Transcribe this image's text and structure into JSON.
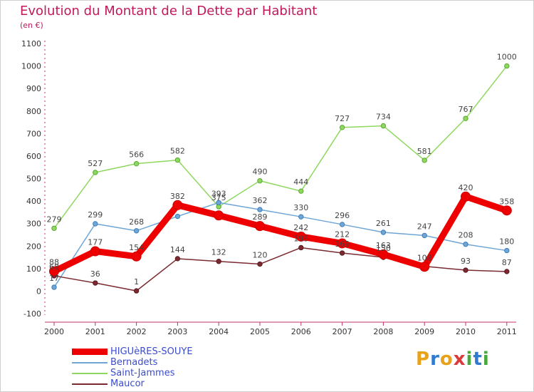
{
  "title": "Evolution du Montant de la Dette par Habitant",
  "unit": "(en €)",
  "logo": {
    "letters": [
      {
        "ch": "P",
        "color": "#e8a21a"
      },
      {
        "ch": "r",
        "color": "#2e7bd1"
      },
      {
        "ch": "o",
        "color": "#e8a21a"
      },
      {
        "ch": "x",
        "color": "#d93a3a"
      },
      {
        "ch": "i",
        "color": "#47a83d"
      },
      {
        "ch": "t",
        "color": "#2e7bd1"
      },
      {
        "ch": "i",
        "color": "#47a83d"
      }
    ]
  },
  "chart_data": {
    "type": "line",
    "categories": [
      "2000",
      "2001",
      "2002",
      "2003",
      "2004",
      "2005",
      "2006",
      "2007",
      "2008",
      "2009",
      "2010",
      "2011"
    ],
    "ylim": [
      -100,
      1100
    ],
    "yticks": [
      -100,
      0,
      100,
      200,
      300,
      400,
      500,
      600,
      700,
      800,
      900,
      1000,
      1100
    ],
    "grid": false,
    "legend_position": "bottom-left",
    "series": [
      {
        "name": "Saint-Jammes",
        "color": "#8fd860",
        "values": [
          279,
          527,
          566,
          582,
          375,
          490,
          444,
          727,
          734,
          581,
          767,
          1000
        ],
        "labels": [
          "279",
          "527",
          "566",
          "582",
          "375",
          "490",
          "444",
          "727",
          "734",
          "581",
          "767",
          "1000"
        ]
      },
      {
        "name": "Bernadets",
        "color": "#6fa6d6",
        "values": [
          17,
          299,
          268,
          332,
          393,
          362,
          330,
          296,
          261,
          247,
          208,
          180
        ],
        "labels": [
          "17",
          "299",
          "268",
          "",
          "393",
          "362",
          "330",
          "296",
          "261",
          "247",
          "208",
          "180"
        ]
      },
      {
        "name": "Maucor",
        "color": "#7a2a30",
        "values": [
          68,
          36,
          1,
          144,
          132,
          120,
          193,
          169,
          150,
          110,
          93,
          87
        ],
        "labels": [
          "68",
          "36",
          "1",
          "144",
          "132",
          "120",
          "193",
          "169",
          "150",
          "",
          "93",
          "87"
        ]
      },
      {
        "name": "HIGUèRES-SOUYE",
        "color": "#ee0000",
        "values": [
          88,
          177,
          154,
          382,
          336,
          289,
          242,
          212,
          163,
          108,
          420,
          358
        ],
        "labels": [
          "88",
          "177",
          "154",
          "382",
          "",
          "289",
          "242",
          "212",
          "163",
          "108",
          "420",
          "358"
        ]
      }
    ],
    "legend_order": [
      "HIGUèRES-SOUYE",
      "Bernadets",
      "Saint-Jammes",
      "Maucor"
    ]
  }
}
